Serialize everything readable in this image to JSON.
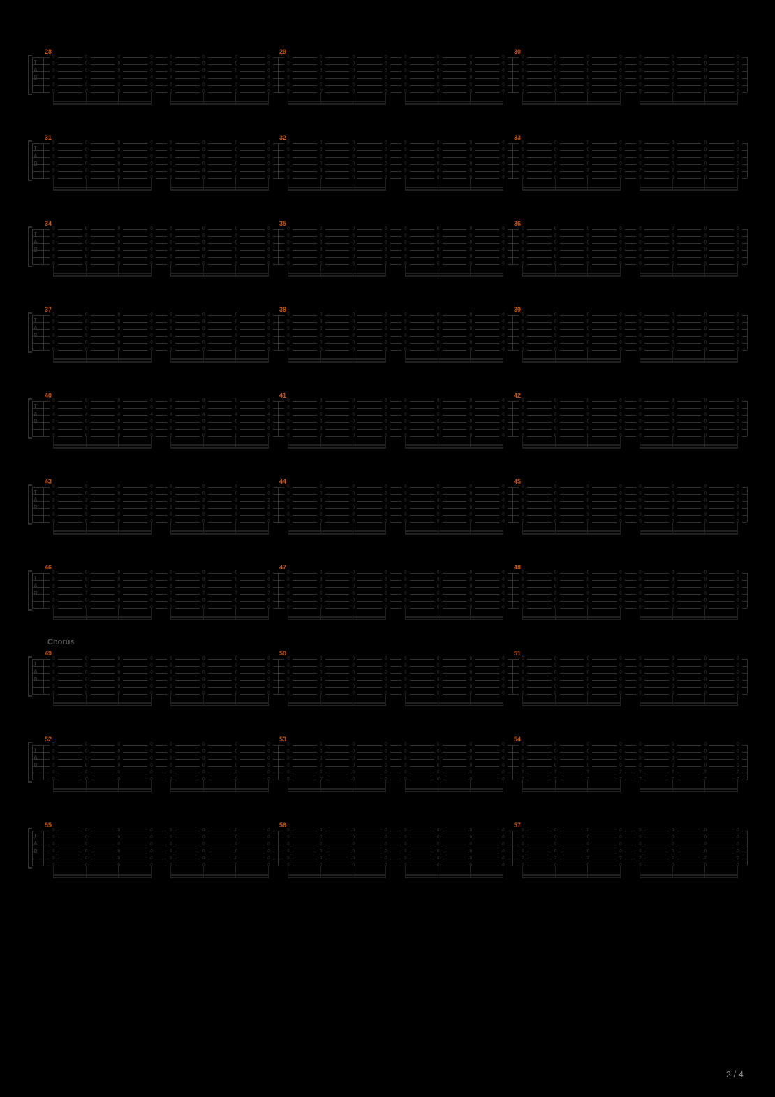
{
  "page_info": {
    "current": 2,
    "total": 4
  },
  "colors": {
    "background": "#000000",
    "staff_line": "#303030",
    "measure_number": "#d15500",
    "section_label": "#555555",
    "fret_number": "#222222",
    "page_number": "#888888",
    "stem": "#202020"
  },
  "layout": {
    "systems": 10,
    "measures_per_system": 3,
    "strings": 6,
    "notes_per_half_measure": 4,
    "halves_per_measure": 2
  },
  "tab_clef": [
    "T",
    "A",
    "B"
  ],
  "systems": [
    {
      "measures": [
        {
          "number": 28,
          "frets": [
            0,
            0,
            0,
            4,
            0,
            0
          ]
        },
        {
          "number": 29,
          "frets": [
            0,
            0,
            0,
            0,
            0,
            0
          ]
        },
        {
          "number": 30,
          "frets": [
            0,
            0,
            0,
            0,
            0,
            0
          ]
        }
      ]
    },
    {
      "measures": [
        {
          "number": 31,
          "frets": [
            0,
            0,
            0,
            0,
            0,
            0
          ]
        },
        {
          "number": 32,
          "frets": [
            0,
            0,
            0,
            0,
            0,
            0
          ]
        },
        {
          "number": 33,
          "frets": [
            0,
            0,
            0,
            0,
            7,
            0
          ]
        }
      ]
    },
    {
      "measures": [
        {
          "number": 34,
          "frets": [
            0,
            0,
            0,
            0,
            0,
            0
          ]
        },
        {
          "number": 35,
          "frets": [
            0,
            0,
            0,
            0,
            0,
            0
          ]
        },
        {
          "number": 36,
          "frets": [
            0,
            0,
            0,
            0,
            0,
            0
          ]
        }
      ]
    },
    {
      "measures": [
        {
          "number": 37,
          "frets": [
            0,
            0,
            0,
            0,
            0,
            0
          ]
        },
        {
          "number": 38,
          "frets": [
            0,
            0,
            0,
            0,
            0,
            0
          ]
        },
        {
          "number": 39,
          "frets": [
            0,
            0,
            0,
            0,
            0,
            0
          ]
        }
      ]
    },
    {
      "measures": [
        {
          "number": 40,
          "frets": [
            0,
            0,
            4,
            0,
            0,
            0
          ]
        },
        {
          "number": 41,
          "frets": [
            0,
            0,
            0,
            0,
            0,
            0
          ]
        },
        {
          "number": 42,
          "frets": [
            0,
            0,
            0,
            0,
            0,
            0
          ]
        }
      ]
    },
    {
      "measures": [
        {
          "number": 43,
          "frets": [
            0,
            0,
            2,
            2,
            0,
            0
          ]
        },
        {
          "number": 44,
          "frets": [
            0,
            0,
            0,
            0,
            0,
            0
          ]
        },
        {
          "number": 45,
          "frets": [
            0,
            0,
            0,
            9,
            9,
            0
          ]
        }
      ]
    },
    {
      "measures": [
        {
          "number": 46,
          "frets": [
            0,
            0,
            0,
            7,
            0,
            0
          ]
        },
        {
          "number": 47,
          "frets": [
            0,
            0,
            0,
            0,
            0,
            0
          ]
        },
        {
          "number": 48,
          "frets": [
            0,
            0,
            0,
            0,
            0,
            0
          ]
        }
      ]
    },
    {
      "section_label": "Chorus",
      "measures": [
        {
          "number": 49,
          "frets": [
            0,
            0,
            0,
            0,
            0,
            0
          ]
        },
        {
          "number": 50,
          "frets": [
            0,
            0,
            0,
            0,
            0,
            0
          ]
        },
        {
          "number": 51,
          "frets": [
            0,
            0,
            0,
            0,
            0,
            0
          ]
        }
      ]
    },
    {
      "measures": [
        {
          "number": 52,
          "frets": [
            0,
            0,
            0,
            0,
            0,
            0
          ]
        },
        {
          "number": 53,
          "frets": [
            0,
            0,
            0,
            0,
            0,
            0
          ]
        },
        {
          "number": 54,
          "frets": [
            0,
            0,
            0,
            0,
            7,
            7
          ]
        }
      ]
    },
    {
      "measures": [
        {
          "number": 55,
          "frets": [
            0,
            0,
            0,
            0,
            0,
            0
          ]
        },
        {
          "number": 56,
          "frets": [
            0,
            0,
            0,
            0,
            0,
            0
          ]
        },
        {
          "number": 57,
          "frets": [
            0,
            0,
            0,
            0,
            7,
            0
          ]
        }
      ]
    }
  ]
}
